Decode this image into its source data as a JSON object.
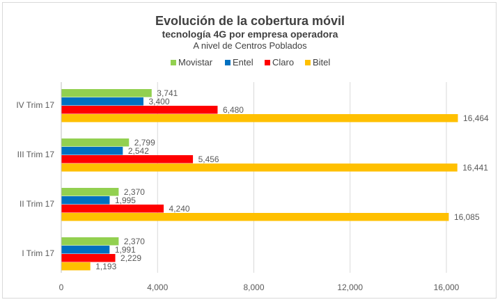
{
  "chart_data": {
    "type": "bar",
    "orientation": "horizontal",
    "title": "Evolución de la cobertura móvil",
    "subtitle": "tecnología 4G por empresa operadora",
    "subtitle2": "A nivel de Centros Poblados",
    "categories": [
      "IV Trim 17",
      "III Trim 17",
      "II Trim 17",
      "I Trim 17"
    ],
    "series": [
      {
        "name": "Movistar",
        "color": "#92d050",
        "values": [
          3741,
          2799,
          2370,
          2370
        ],
        "labels": [
          "3,741",
          "2,799",
          "2,370",
          "2,370"
        ]
      },
      {
        "name": "Entel",
        "color": "#0070c0",
        "values": [
          3400,
          2542,
          1995,
          1991
        ],
        "labels": [
          "3,400",
          "2,542",
          "1,995",
          "1,991"
        ]
      },
      {
        "name": "Claro",
        "color": "#ff0000",
        "values": [
          6480,
          5456,
          4240,
          2229
        ],
        "labels": [
          "6,480",
          "5,456",
          "4,240",
          "2,229"
        ]
      },
      {
        "name": "Bitel",
        "color": "#ffc000",
        "values": [
          16464,
          16441,
          16085,
          1193
        ],
        "labels": [
          "16,464",
          "16,441",
          "16,085",
          "1,193"
        ]
      }
    ],
    "xlim": [
      0,
      16000
    ],
    "xticks": [
      0,
      4000,
      8000,
      12000,
      16000
    ],
    "xtick_labels": [
      "0",
      "4,000",
      "8,000",
      "12,000",
      "16,000"
    ],
    "grid": true,
    "legend_position": "top"
  }
}
